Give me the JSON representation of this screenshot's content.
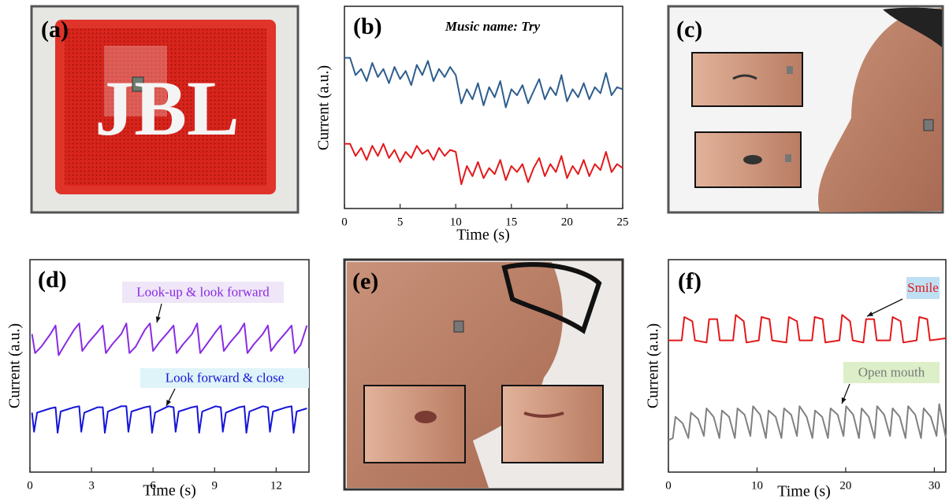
{
  "panels": {
    "a": {
      "label": "(a)",
      "logo": "JBL"
    },
    "c": {
      "label": "(c)"
    },
    "e": {
      "label": "(e)"
    }
  },
  "chart_data": [
    {
      "type": "line",
      "label": "(b)",
      "title": "Music name: Try",
      "xlabel": "Time (s)",
      "ylabel": "Current (a.u.)",
      "xlim": [
        0,
        25
      ],
      "xticks": [
        0,
        5,
        10,
        15,
        20,
        25
      ],
      "ylim": [
        0,
        10
      ],
      "series": [
        {
          "color": "#2e5d8e",
          "x": [
            0,
            0.5,
            1,
            1.5,
            2,
            2.5,
            3,
            3.5,
            4,
            4.5,
            5,
            5.5,
            6,
            6.5,
            7,
            7.5,
            8,
            8.5,
            9,
            9.5,
            10,
            10.5,
            11,
            11.5,
            12,
            12.5,
            13,
            13.5,
            14,
            14.5,
            15,
            15.5,
            16,
            16.5,
            17,
            17.5,
            18,
            18.5,
            19,
            19.5,
            20,
            20.5,
            21,
            21.5,
            22,
            22.5,
            23,
            23.5,
            24,
            24.5,
            25
          ],
          "values": [
            7.45,
            7.45,
            6.6,
            6.9,
            6.3,
            7.2,
            6.5,
            6.9,
            6.2,
            7.0,
            6.4,
            6.8,
            6.1,
            7.1,
            6.6,
            7.3,
            6.3,
            6.9,
            6.5,
            7.0,
            6.6,
            5.2,
            5.9,
            5.4,
            6.2,
            5.1,
            6.0,
            5.5,
            6.3,
            5.0,
            5.9,
            5.6,
            6.1,
            5.2,
            5.8,
            6.4,
            5.4,
            6.0,
            5.6,
            6.6,
            5.3,
            5.9,
            5.5,
            6.2,
            5.4,
            6.0,
            5.7,
            6.7,
            5.6,
            6.0,
            5.9
          ]
        },
        {
          "color": "#e3191b",
          "x": [
            0,
            0.5,
            1,
            1.5,
            2,
            2.5,
            3,
            3.5,
            4,
            4.5,
            5,
            5.5,
            6,
            6.5,
            7,
            7.5,
            8,
            8.5,
            9,
            9.5,
            10,
            10.5,
            11,
            11.5,
            12,
            12.5,
            13,
            13.5,
            14,
            14.5,
            15,
            15.5,
            16,
            16.5,
            17,
            17.5,
            18,
            18.5,
            19,
            19.5,
            20,
            20.5,
            21,
            21.5,
            22,
            22.5,
            23,
            23.5,
            24,
            24.5,
            25
          ],
          "values": [
            3.2,
            3.2,
            2.6,
            3.0,
            2.4,
            3.1,
            2.6,
            3.2,
            2.5,
            2.9,
            2.3,
            2.8,
            2.5,
            3.1,
            2.7,
            2.9,
            2.4,
            3.0,
            2.6,
            2.9,
            2.8,
            1.2,
            2.1,
            1.6,
            2.3,
            1.5,
            2.0,
            1.7,
            2.4,
            1.4,
            2.1,
            1.8,
            2.2,
            1.3,
            2.0,
            2.5,
            1.6,
            2.2,
            1.8,
            2.6,
            1.5,
            2.1,
            1.7,
            2.4,
            1.6,
            2.2,
            1.9,
            2.8,
            1.8,
            2.2,
            2.0
          ]
        }
      ]
    },
    {
      "type": "line",
      "label": "(d)",
      "xlabel": "Time (s)",
      "ylabel": "Current (a.u.)",
      "xlim": [
        0,
        13.6
      ],
      "xticks": [
        0,
        3,
        6,
        9,
        12
      ],
      "ylim": [
        0,
        10
      ],
      "annotations": [
        {
          "text": "Look-up  & look forward",
          "color": "#8a2be2",
          "background": "#efe6f8"
        },
        {
          "text": "Look forward  & close",
          "color": "#1515d8",
          "background": "#dff4f8"
        }
      ],
      "series": [
        {
          "color": "#8a2be2",
          "x": [
            0.1,
            0.25,
            0.55,
            1.0,
            1.25,
            1.4,
            1.7,
            2.15,
            2.4,
            2.55,
            2.85,
            3.3,
            3.55,
            3.7,
            4.0,
            4.45,
            4.7,
            4.85,
            5.15,
            5.6,
            5.85,
            6.0,
            6.3,
            6.75,
            7.0,
            7.15,
            7.45,
            7.9,
            8.15,
            8.3,
            8.6,
            9.05,
            9.3,
            9.45,
            9.75,
            10.2,
            10.45,
            10.6,
            10.9,
            11.35,
            11.6,
            11.75,
            12.05,
            12.5,
            12.75,
            12.9,
            13.2,
            13.5
          ],
          "values": [
            6.5,
            5.6,
            5.9,
            6.5,
            6.9,
            5.5,
            6.0,
            6.7,
            7.0,
            5.7,
            6.1,
            6.6,
            6.9,
            5.6,
            6.0,
            6.5,
            7.0,
            5.6,
            5.9,
            6.7,
            7.0,
            5.7,
            6.1,
            6.6,
            6.9,
            5.6,
            6.0,
            6.5,
            7.0,
            5.6,
            6.0,
            6.6,
            6.9,
            5.7,
            6.1,
            6.6,
            7.0,
            5.6,
            6.0,
            6.5,
            6.9,
            5.7,
            6.1,
            6.6,
            6.9,
            5.6,
            6.0,
            6.9
          ]
        },
        {
          "color": "#1515d8",
          "x": [
            0.1,
            0.2,
            0.35,
            1.0,
            1.25,
            1.35,
            1.5,
            2.15,
            2.4,
            2.5,
            2.65,
            3.3,
            3.55,
            3.65,
            3.8,
            4.45,
            4.7,
            4.8,
            4.95,
            5.6,
            5.85,
            5.95,
            6.1,
            6.75,
            7.0,
            7.1,
            7.25,
            7.9,
            8.15,
            8.25,
            8.4,
            9.05,
            9.3,
            9.4,
            9.55,
            10.2,
            10.45,
            10.55,
            10.7,
            11.35,
            11.6,
            11.7,
            11.85,
            12.5,
            12.75,
            12.85,
            13.0,
            13.5
          ],
          "values": [
            2.8,
            1.9,
            2.8,
            3.0,
            3.05,
            1.85,
            2.85,
            3.05,
            3.1,
            1.9,
            2.8,
            3.05,
            3.05,
            1.85,
            2.85,
            3.1,
            3.1,
            1.9,
            2.85,
            3.05,
            3.1,
            1.85,
            2.8,
            3.1,
            3.05,
            1.9,
            2.85,
            3.05,
            3.1,
            1.85,
            2.85,
            3.1,
            3.05,
            1.9,
            2.8,
            3.05,
            3.1,
            1.85,
            2.85,
            3.1,
            3.05,
            1.9,
            2.85,
            3.05,
            3.1,
            1.85,
            2.85,
            3.0
          ]
        }
      ]
    },
    {
      "type": "line",
      "label": "(f)",
      "xlabel": "Time (s)",
      "ylabel": "Current (a.u.)",
      "xlim": [
        0,
        31.3
      ],
      "xticks": [
        0,
        10,
        20,
        30
      ],
      "ylim": [
        0,
        10
      ],
      "annotations": [
        {
          "text": "Smile",
          "color": "#e3191b",
          "background": "#bfe0f3"
        },
        {
          "text": "Open mouth",
          "color": "#7a7a7a",
          "background": "#dcefc8"
        }
      ],
      "series": [
        {
          "color": "#e3191b",
          "x": [
            0,
            1.5,
            1.8,
            2.7,
            3.0,
            4.3,
            4.6,
            5.5,
            5.8,
            7.3,
            7.6,
            8.5,
            8.8,
            10.2,
            10.5,
            11.4,
            11.7,
            13.3,
            13.6,
            14.5,
            14.8,
            16.2,
            16.5,
            17.4,
            17.7,
            19.3,
            19.6,
            20.5,
            20.8,
            22.0,
            22.3,
            23.2,
            23.5,
            25.0,
            25.3,
            26.2,
            26.5,
            28.0,
            28.3,
            29.2,
            29.5,
            31.3
          ],
          "values": [
            6.2,
            6.2,
            7.3,
            7.1,
            6.2,
            6.1,
            7.2,
            7.2,
            6.2,
            6.2,
            7.4,
            7.1,
            6.1,
            6.2,
            7.3,
            7.2,
            6.2,
            6.1,
            7.3,
            7.1,
            6.2,
            6.2,
            7.3,
            7.2,
            6.1,
            6.2,
            7.4,
            7.1,
            6.2,
            6.1,
            7.2,
            7.2,
            6.2,
            6.2,
            7.3,
            7.1,
            6.1,
            6.2,
            7.3,
            7.2,
            6.2,
            6.3
          ]
        },
        {
          "color": "#808080",
          "x": [
            0,
            0.5,
            0.8,
            1.6,
            2.25,
            2.55,
            3.35,
            4.0,
            4.3,
            5.1,
            5.75,
            6.05,
            6.85,
            7.5,
            7.8,
            8.6,
            9.25,
            9.55,
            10.35,
            11.0,
            11.3,
            12.1,
            12.75,
            13.05,
            13.85,
            14.5,
            14.8,
            15.6,
            16.25,
            16.55,
            17.35,
            18.0,
            18.3,
            19.1,
            19.75,
            20.05,
            20.85,
            21.5,
            21.8,
            22.6,
            23.25,
            23.55,
            24.35,
            25.0,
            25.3,
            26.1,
            26.75,
            27.05,
            27.85,
            28.5,
            28.8,
            29.6,
            30.25,
            30.55,
            31.3
          ],
          "values": [
            1.5,
            1.6,
            2.6,
            2.3,
            1.6,
            2.8,
            2.5,
            1.7,
            3.0,
            2.6,
            1.6,
            2.9,
            2.6,
            1.6,
            3.0,
            2.7,
            1.7,
            3.1,
            2.7,
            1.6,
            2.9,
            2.6,
            1.6,
            3.0,
            2.7,
            1.7,
            3.1,
            2.6,
            1.6,
            2.9,
            2.6,
            1.6,
            3.0,
            2.7,
            1.7,
            3.1,
            2.7,
            1.6,
            3.0,
            2.6,
            1.6,
            3.1,
            2.7,
            1.7,
            3.0,
            2.6,
            1.6,
            3.1,
            2.7,
            1.6,
            3.0,
            2.6,
            1.7,
            3.2,
            1.6
          ]
        }
      ]
    }
  ]
}
